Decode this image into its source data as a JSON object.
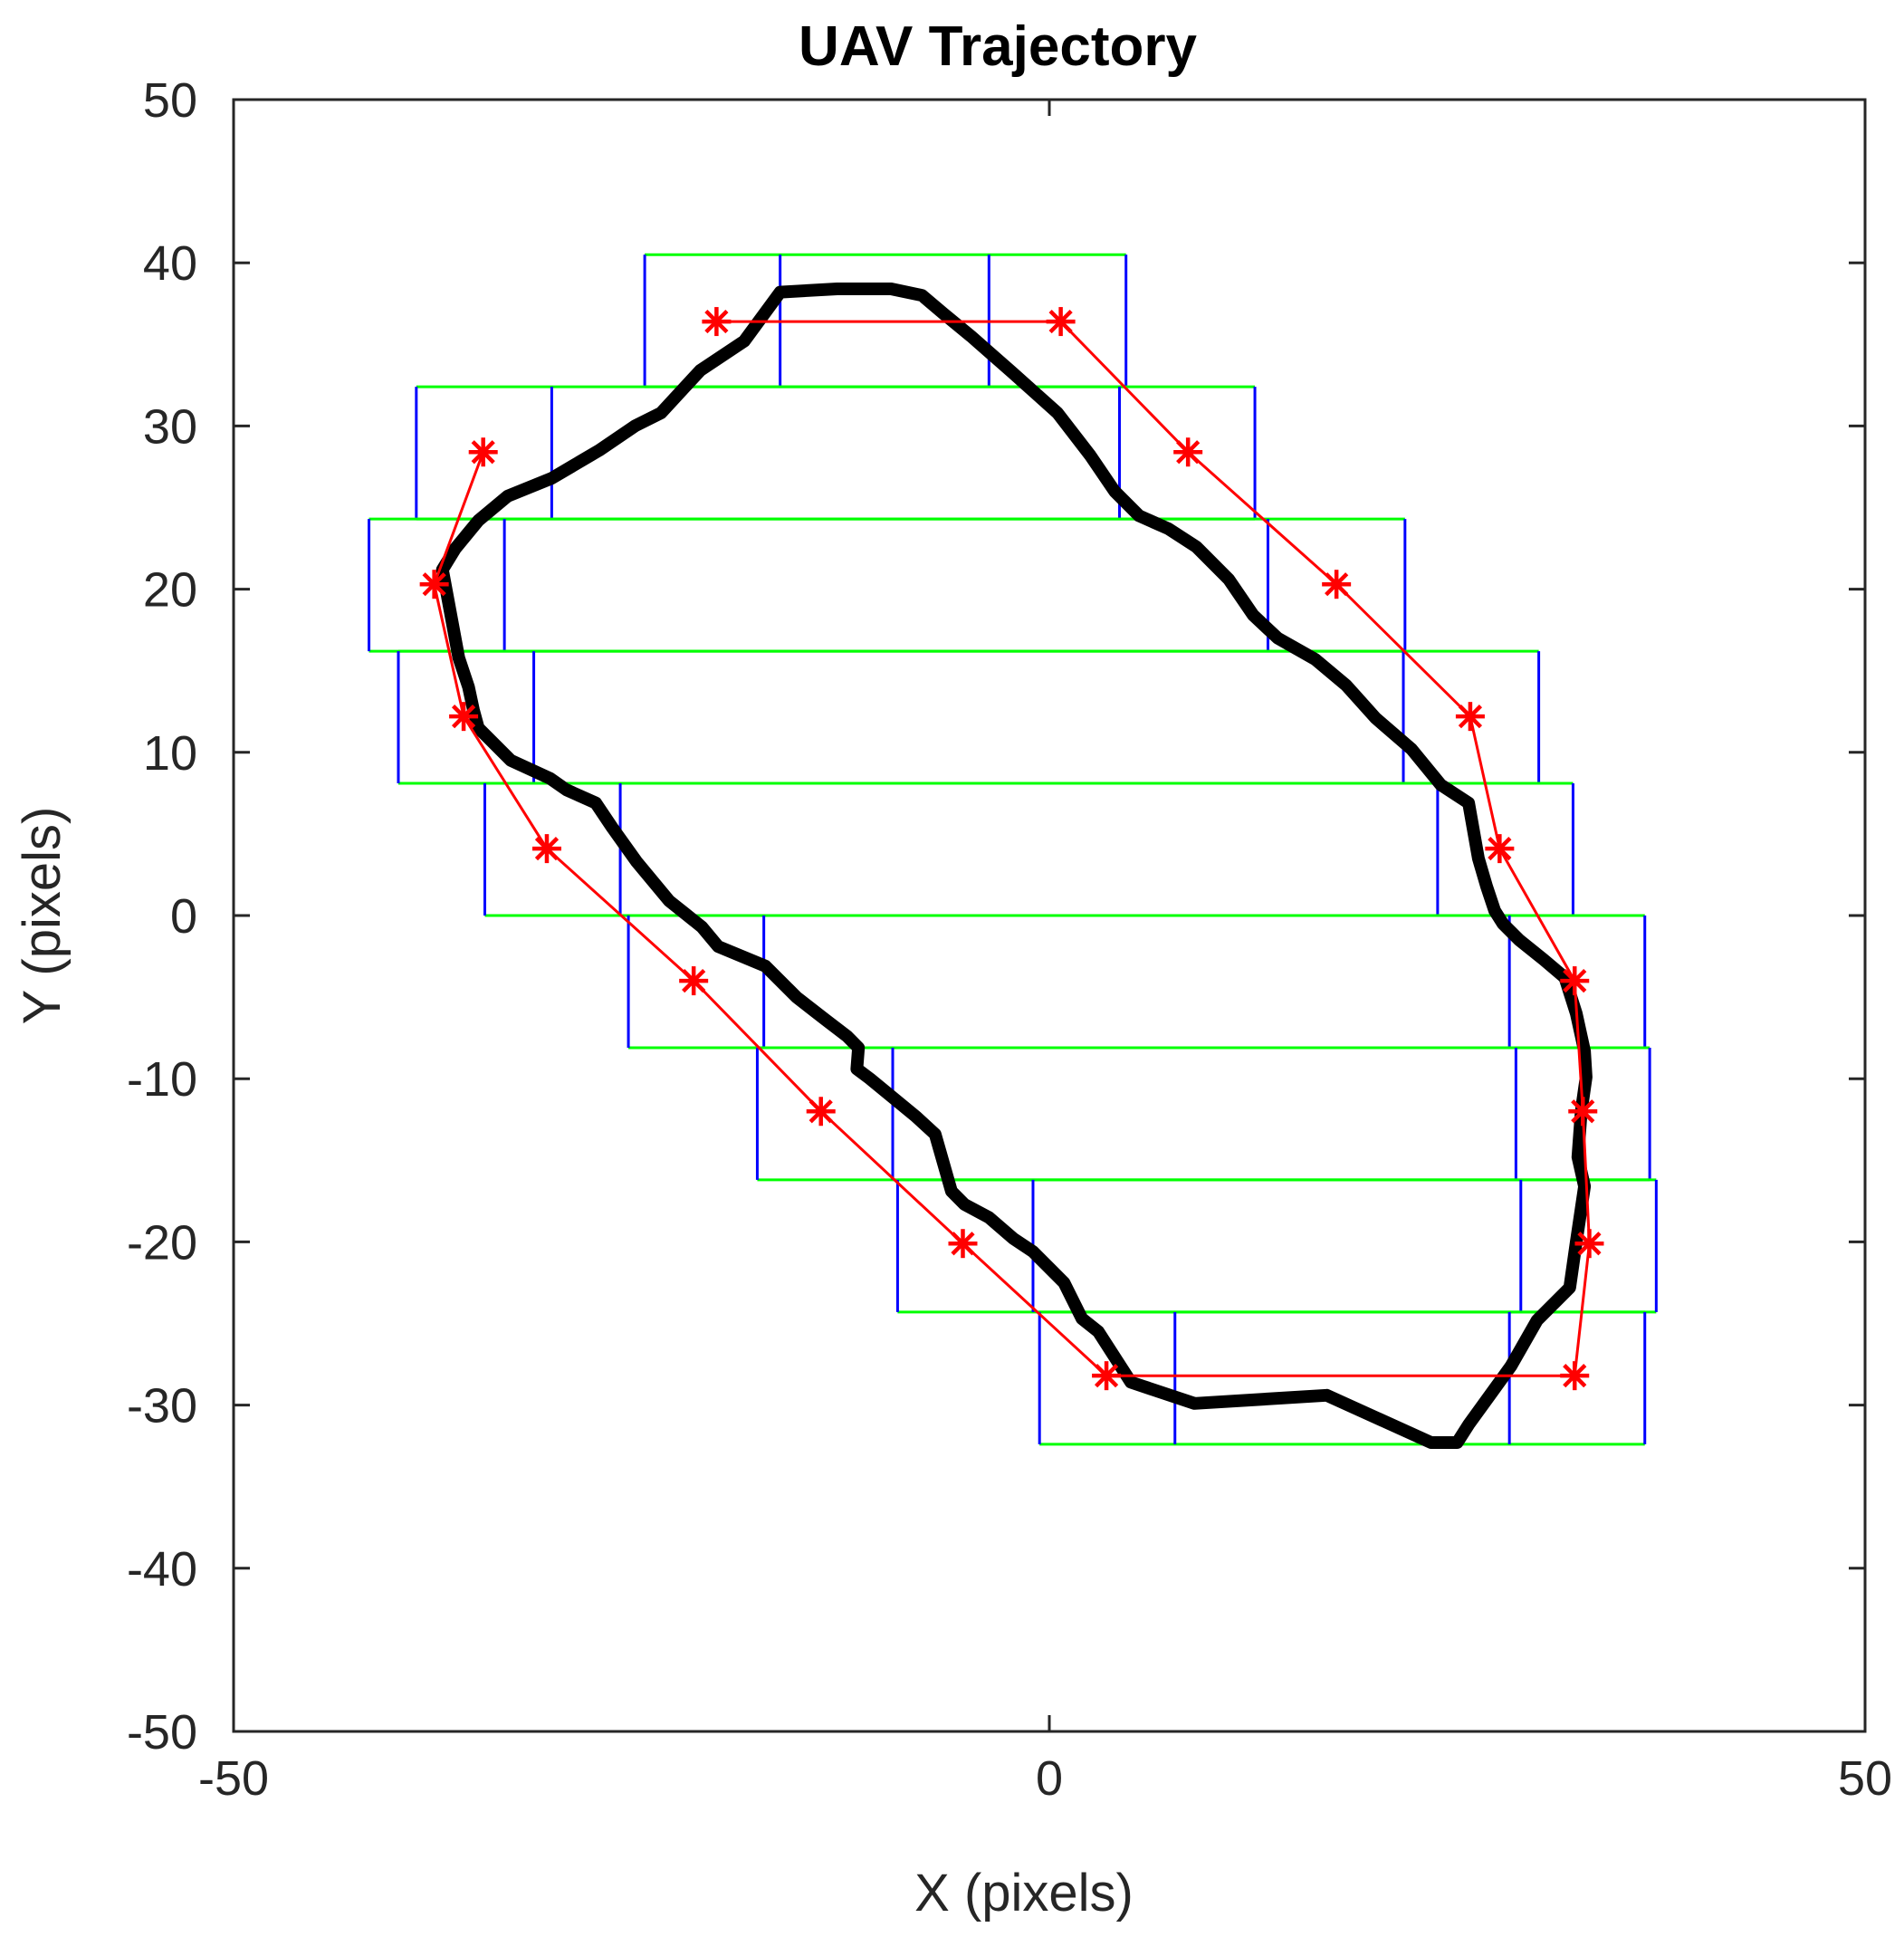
{
  "chart_data": {
    "type": "line",
    "title": "UAV Trajectory",
    "xlabel": "X (pixels)",
    "ylabel": "Y (pixels)",
    "xlim": [
      -50,
      50
    ],
    "ylim": [
      -50,
      50
    ],
    "xticks": [
      -50,
      0,
      50
    ],
    "yticks": [
      -50,
      -40,
      -30,
      -20,
      -10,
      0,
      10,
      20,
      30,
      40,
      50
    ],
    "grid": false,
    "colors": {
      "trajectory": "#000000",
      "waypoints": "#ff0000",
      "box_horizontal": "#00ff00",
      "box_vertical": "#0000ff",
      "axes": "#262626"
    },
    "series": [
      {
        "role": "trajectory",
        "x": [
          -37.2,
          -36.4,
          -35.0,
          -33.2,
          -30.5,
          -27.6,
          -25.4,
          -23.8,
          -21.4,
          -18.7,
          -16.5,
          -13.0,
          -9.7,
          -7.8,
          -6.5,
          -4.8,
          -2.3,
          0.5,
          2.5,
          4.0,
          5.5,
          7.3,
          9.0,
          11.0,
          12.5,
          14.0,
          16.3,
          18.2,
          20.0,
          22.2,
          24.0,
          25.7,
          26.3,
          26.8,
          27.3,
          27.8,
          28.8,
          30.3,
          31.6,
          32.3,
          32.8,
          32.9,
          32.6,
          32.4,
          32.8,
          32.3,
          31.9,
          29.9,
          28.3,
          25.7,
          25.0,
          23.4,
          17.0,
          8.9,
          5.0,
          3.0,
          2.0,
          0.9,
          -1.0,
          -2.2,
          -3.7,
          -5.2,
          -6.0,
          -7.0,
          -8.2,
          -11.0,
          -11.8,
          -11.7,
          -12.4,
          -13.7,
          -15.5,
          -17.4,
          -20.3,
          -21.3,
          -23.3,
          -25.3,
          -26.8,
          -27.8,
          -29.6,
          -30.6,
          -33.0,
          -35.0,
          -35.3,
          -35.6,
          -36.2,
          -37.2
        ],
        "y": [
          21.2,
          22.5,
          24.2,
          25.7,
          26.8,
          28.5,
          30.0,
          30.8,
          33.4,
          35.2,
          38.2,
          38.4,
          38.4,
          38.0,
          36.9,
          35.5,
          33.3,
          30.8,
          28.2,
          26.0,
          24.5,
          23.7,
          22.6,
          20.6,
          18.4,
          17.0,
          15.7,
          14.1,
          12.1,
          10.2,
          8.0,
          6.9,
          3.5,
          1.8,
          0.3,
          -0.5,
          -1.5,
          -2.7,
          -3.8,
          -6.0,
          -8.3,
          -9.9,
          -12.0,
          -14.8,
          -16.6,
          -20.0,
          -22.8,
          -24.8,
          -27.6,
          -31.2,
          -32.3,
          -32.3,
          -29.4,
          -29.9,
          -28.6,
          -25.5,
          -24.7,
          -22.5,
          -20.6,
          -19.8,
          -18.5,
          -17.7,
          -16.9,
          -13.4,
          -12.3,
          -10.0,
          -9.4,
          -8.1,
          -7.4,
          -6.4,
          -5.0,
          -3.1,
          -1.9,
          -0.7,
          0.9,
          3.3,
          5.4,
          6.9,
          7.7,
          8.4,
          9.5,
          11.5,
          12.6,
          14.0,
          15.8,
          21.2
        ]
      },
      {
        "role": "waypoints",
        "marker": "asterisk",
        "x": [
          -20.4,
          0.7,
          8.5,
          17.6,
          25.8,
          27.6,
          32.2,
          32.7,
          33.1,
          32.2,
          3.5,
          -5.3,
          -14.0,
          -21.8,
          -30.8,
          -35.9,
          -37.7,
          -34.7
        ],
        "y": [
          36.4,
          36.4,
          28.4,
          20.3,
          12.2,
          4.1,
          -4.0,
          -12.0,
          -20.1,
          -28.2,
          -28.2,
          -20.1,
          -12.0,
          -4.0,
          4.1,
          12.2,
          20.3,
          28.4
        ]
      }
    ],
    "footprints": [
      {
        "x_left": -24.8,
        "x_right": 4.7,
        "y_bottom": 32.4,
        "y_top": 40.5,
        "inner_x": [
          -16.5,
          -3.7
        ]
      },
      {
        "x_left": -38.8,
        "x_right": 12.6,
        "y_bottom": 24.3,
        "y_top": 32.4,
        "inner_x": [
          -30.5,
          4.3
        ]
      },
      {
        "x_left": -41.7,
        "x_right": 21.8,
        "y_bottom": 16.2,
        "y_top": 24.3,
        "inner_x": [
          -33.4,
          13.4
        ]
      },
      {
        "x_left": -39.9,
        "x_right": 30.0,
        "y_bottom": 8.1,
        "y_top": 16.2,
        "inner_x": [
          -31.6,
          21.7
        ]
      },
      {
        "x_left": -34.6,
        "x_right": 32.1,
        "y_bottom": 0.0,
        "y_top": 8.1,
        "inner_x": [
          -26.3,
          23.8
        ]
      },
      {
        "x_left": -25.8,
        "x_right": 36.5,
        "y_bottom": -8.1,
        "y_top": 0.0,
        "inner_x": [
          -17.5,
          28.2
        ]
      },
      {
        "x_left": -17.9,
        "x_right": 36.8,
        "y_bottom": -16.2,
        "y_top": -8.1,
        "inner_x": [
          -9.6,
          28.6
        ]
      },
      {
        "x_left": -9.3,
        "x_right": 37.2,
        "y_bottom": -24.3,
        "y_top": -16.2,
        "inner_x": [
          -1.0,
          28.9
        ]
      },
      {
        "x_left": -0.6,
        "x_right": 36.5,
        "y_bottom": -32.4,
        "y_top": -24.3,
        "inner_x": [
          7.7,
          28.2
        ]
      }
    ]
  }
}
